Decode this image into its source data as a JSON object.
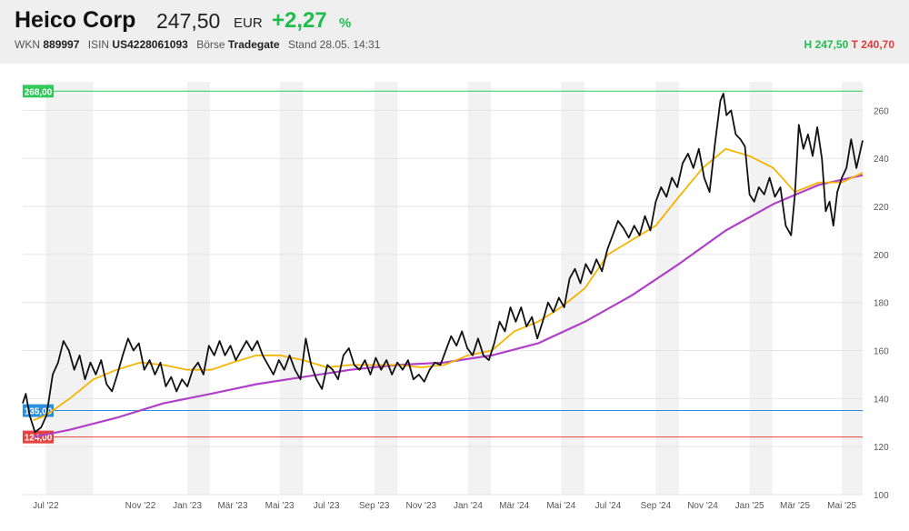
{
  "header": {
    "name": "Heico Corp",
    "price": "247,50",
    "currency": "EUR",
    "change": "+2,27",
    "change_unit": "%",
    "wkn_label": "WKN",
    "wkn": "889997",
    "isin_label": "ISIN",
    "isin": "US4228061093",
    "exchange_label": "Börse",
    "exchange": "Tradegate",
    "stand_label": "Stand",
    "stand": "28.05. 14:31",
    "high_label": "H",
    "high": "247,50",
    "low_label": "T",
    "low": "240,70"
  },
  "colors": {
    "price_line": "#111111",
    "ma_short": "#f5b400",
    "ma_long": "#b040c8",
    "level_high": "#31c95b",
    "level_mid": "#2b8fe0",
    "level_low": "#e8423f",
    "shade": "#f2f2f2",
    "positive": "#1ebd4e",
    "negative": "#e33b3b"
  },
  "chart_data": {
    "type": "line",
    "x_start": "2022-06-01",
    "x_end": "2025-05-28",
    "y_range": [
      100,
      270
    ],
    "y_ticks": [
      100,
      120,
      140,
      160,
      180,
      200,
      220,
      240,
      260
    ],
    "x_ticks": [
      {
        "label": "Jul '22",
        "date": "2022-07-01"
      },
      {
        "label": "Nov '22",
        "date": "2022-11-01"
      },
      {
        "label": "Jan '23",
        "date": "2023-01-01"
      },
      {
        "label": "Mär '23",
        "date": "2023-03-01"
      },
      {
        "label": "Mai '23",
        "date": "2023-05-01"
      },
      {
        "label": "Jul '23",
        "date": "2023-07-01"
      },
      {
        "label": "Sep '23",
        "date": "2023-09-01"
      },
      {
        "label": "Nov '23",
        "date": "2023-11-01"
      },
      {
        "label": "Jan '24",
        "date": "2024-01-01"
      },
      {
        "label": "Mär '24",
        "date": "2024-03-01"
      },
      {
        "label": "Mai '24",
        "date": "2024-05-01"
      },
      {
        "label": "Jul '24",
        "date": "2024-07-01"
      },
      {
        "label": "Sep '24",
        "date": "2024-09-01"
      },
      {
        "label": "Nov '24",
        "date": "2024-11-01"
      },
      {
        "label": "Jan '25",
        "date": "2025-01-01"
      },
      {
        "label": "Mär '25",
        "date": "2025-03-01"
      },
      {
        "label": "Mai '25",
        "date": "2025-05-01"
      }
    ],
    "levels": [
      {
        "label": "268,00",
        "value": 268,
        "color": "#31c95b"
      },
      {
        "label": "135,00",
        "value": 135,
        "color": "#2b8fe0"
      },
      {
        "label": "124,00",
        "value": 124,
        "color": "#e8423f"
      }
    ],
    "series": [
      {
        "color": "#111111",
        "points": [
          [
            "2022-06-01",
            138
          ],
          [
            "2022-06-05",
            142
          ],
          [
            "2022-06-10",
            133
          ],
          [
            "2022-06-17",
            126
          ],
          [
            "2022-06-25",
            128
          ],
          [
            "2022-07-02",
            133
          ],
          [
            "2022-07-10",
            150
          ],
          [
            "2022-07-17",
            155
          ],
          [
            "2022-07-24",
            164
          ],
          [
            "2022-07-31",
            160
          ],
          [
            "2022-08-07",
            152
          ],
          [
            "2022-08-14",
            158
          ],
          [
            "2022-08-21",
            148
          ],
          [
            "2022-08-28",
            155
          ],
          [
            "2022-09-04",
            150
          ],
          [
            "2022-09-11",
            156
          ],
          [
            "2022-09-18",
            146
          ],
          [
            "2022-09-25",
            143
          ],
          [
            "2022-10-02",
            150
          ],
          [
            "2022-10-09",
            158
          ],
          [
            "2022-10-16",
            165
          ],
          [
            "2022-10-23",
            160
          ],
          [
            "2022-10-30",
            163
          ],
          [
            "2022-11-06",
            152
          ],
          [
            "2022-11-13",
            156
          ],
          [
            "2022-11-20",
            150
          ],
          [
            "2022-11-27",
            155
          ],
          [
            "2022-12-04",
            145
          ],
          [
            "2022-12-11",
            149
          ],
          [
            "2022-12-18",
            143
          ],
          [
            "2022-12-25",
            148
          ],
          [
            "2023-01-01",
            145
          ],
          [
            "2023-01-08",
            152
          ],
          [
            "2023-01-15",
            155
          ],
          [
            "2023-01-22",
            150
          ],
          [
            "2023-01-29",
            162
          ],
          [
            "2023-02-05",
            158
          ],
          [
            "2023-02-12",
            164
          ],
          [
            "2023-02-19",
            158
          ],
          [
            "2023-02-26",
            162
          ],
          [
            "2023-03-05",
            156
          ],
          [
            "2023-03-12",
            160
          ],
          [
            "2023-03-19",
            164
          ],
          [
            "2023-03-26",
            160
          ],
          [
            "2023-04-02",
            164
          ],
          [
            "2023-04-09",
            158
          ],
          [
            "2023-04-16",
            154
          ],
          [
            "2023-04-23",
            150
          ],
          [
            "2023-04-30",
            156
          ],
          [
            "2023-05-07",
            152
          ],
          [
            "2023-05-14",
            158
          ],
          [
            "2023-05-21",
            152
          ],
          [
            "2023-05-28",
            148
          ],
          [
            "2023-06-04",
            165
          ],
          [
            "2023-06-11",
            154
          ],
          [
            "2023-06-18",
            148
          ],
          [
            "2023-06-25",
            144
          ],
          [
            "2023-07-02",
            154
          ],
          [
            "2023-07-09",
            152
          ],
          [
            "2023-07-16",
            148
          ],
          [
            "2023-07-23",
            158
          ],
          [
            "2023-07-30",
            161
          ],
          [
            "2023-08-06",
            154
          ],
          [
            "2023-08-13",
            152
          ],
          [
            "2023-08-20",
            156
          ],
          [
            "2023-08-27",
            150
          ],
          [
            "2023-09-03",
            157
          ],
          [
            "2023-09-10",
            152
          ],
          [
            "2023-09-17",
            156
          ],
          [
            "2023-09-24",
            150
          ],
          [
            "2023-10-01",
            155
          ],
          [
            "2023-10-08",
            152
          ],
          [
            "2023-10-15",
            156
          ],
          [
            "2023-10-22",
            148
          ],
          [
            "2023-10-29",
            150
          ],
          [
            "2023-11-05",
            147
          ],
          [
            "2023-11-12",
            152
          ],
          [
            "2023-11-19",
            155
          ],
          [
            "2023-11-26",
            154
          ],
          [
            "2023-12-03",
            160
          ],
          [
            "2023-12-10",
            166
          ],
          [
            "2023-12-17",
            162
          ],
          [
            "2023-12-24",
            168
          ],
          [
            "2023-12-31",
            161
          ],
          [
            "2024-01-07",
            158
          ],
          [
            "2024-01-14",
            165
          ],
          [
            "2024-01-21",
            158
          ],
          [
            "2024-01-28",
            156
          ],
          [
            "2024-02-04",
            163
          ],
          [
            "2024-02-11",
            172
          ],
          [
            "2024-02-18",
            168
          ],
          [
            "2024-02-25",
            178
          ],
          [
            "2024-03-03",
            172
          ],
          [
            "2024-03-10",
            178
          ],
          [
            "2024-03-17",
            170
          ],
          [
            "2024-03-24",
            174
          ],
          [
            "2024-03-31",
            165
          ],
          [
            "2024-04-07",
            172
          ],
          [
            "2024-04-14",
            180
          ],
          [
            "2024-04-21",
            176
          ],
          [
            "2024-04-28",
            182
          ],
          [
            "2024-05-05",
            178
          ],
          [
            "2024-05-12",
            190
          ],
          [
            "2024-05-19",
            194
          ],
          [
            "2024-05-26",
            188
          ],
          [
            "2024-06-02",
            196
          ],
          [
            "2024-06-09",
            192
          ],
          [
            "2024-06-16",
            198
          ],
          [
            "2024-06-23",
            193
          ],
          [
            "2024-06-30",
            202
          ],
          [
            "2024-07-07",
            208
          ],
          [
            "2024-07-14",
            214
          ],
          [
            "2024-07-21",
            211
          ],
          [
            "2024-07-28",
            207
          ],
          [
            "2024-08-04",
            212
          ],
          [
            "2024-08-11",
            208
          ],
          [
            "2024-08-18",
            216
          ],
          [
            "2024-08-25",
            210
          ],
          [
            "2024-09-01",
            222
          ],
          [
            "2024-09-08",
            228
          ],
          [
            "2024-09-15",
            224
          ],
          [
            "2024-09-22",
            232
          ],
          [
            "2024-09-29",
            228
          ],
          [
            "2024-10-06",
            238
          ],
          [
            "2024-10-13",
            242
          ],
          [
            "2024-10-20",
            236
          ],
          [
            "2024-10-27",
            244
          ],
          [
            "2024-11-03",
            232
          ],
          [
            "2024-11-10",
            226
          ],
          [
            "2024-11-17",
            246
          ],
          [
            "2024-11-24",
            264
          ],
          [
            "2024-11-28",
            267
          ],
          [
            "2024-12-02",
            258
          ],
          [
            "2024-12-08",
            260
          ],
          [
            "2024-12-14",
            250
          ],
          [
            "2024-12-20",
            248
          ],
          [
            "2024-12-26",
            245
          ],
          [
            "2025-01-01",
            225
          ],
          [
            "2025-01-07",
            222
          ],
          [
            "2025-01-13",
            228
          ],
          [
            "2025-01-20",
            225
          ],
          [
            "2025-01-27",
            232
          ],
          [
            "2025-02-03",
            224
          ],
          [
            "2025-02-10",
            228
          ],
          [
            "2025-02-17",
            212
          ],
          [
            "2025-02-24",
            208
          ],
          [
            "2025-03-01",
            225
          ],
          [
            "2025-03-06",
            254
          ],
          [
            "2025-03-12",
            244
          ],
          [
            "2025-03-18",
            250
          ],
          [
            "2025-03-24",
            241
          ],
          [
            "2025-03-30",
            253
          ],
          [
            "2025-04-05",
            240
          ],
          [
            "2025-04-10",
            218
          ],
          [
            "2025-04-15",
            222
          ],
          [
            "2025-04-20",
            212
          ],
          [
            "2025-04-25",
            226
          ],
          [
            "2025-05-01",
            232
          ],
          [
            "2025-05-07",
            236
          ],
          [
            "2025-05-13",
            248
          ],
          [
            "2025-05-20",
            236
          ],
          [
            "2025-05-28",
            247.5
          ]
        ]
      },
      {
        "color": "#f5b400",
        "points": [
          [
            "2022-06-15",
            131
          ],
          [
            "2022-07-01",
            133
          ],
          [
            "2022-08-01",
            140
          ],
          [
            "2022-09-01",
            148
          ],
          [
            "2022-10-01",
            152
          ],
          [
            "2022-11-01",
            155
          ],
          [
            "2022-12-01",
            154
          ],
          [
            "2023-01-01",
            152
          ],
          [
            "2023-02-01",
            152
          ],
          [
            "2023-03-01",
            155
          ],
          [
            "2023-04-01",
            158
          ],
          [
            "2023-05-01",
            158
          ],
          [
            "2023-06-01",
            156
          ],
          [
            "2023-07-01",
            153
          ],
          [
            "2023-08-01",
            154
          ],
          [
            "2023-09-01",
            154
          ],
          [
            "2023-10-01",
            154
          ],
          [
            "2023-11-01",
            153
          ],
          [
            "2023-12-01",
            154
          ],
          [
            "2024-01-01",
            158
          ],
          [
            "2024-02-01",
            160
          ],
          [
            "2024-03-01",
            168
          ],
          [
            "2024-04-01",
            172
          ],
          [
            "2024-05-01",
            178
          ],
          [
            "2024-06-01",
            186
          ],
          [
            "2024-07-01",
            200
          ],
          [
            "2024-08-01",
            206
          ],
          [
            "2024-09-01",
            212
          ],
          [
            "2024-10-01",
            224
          ],
          [
            "2024-11-01",
            236
          ],
          [
            "2024-12-01",
            244
          ],
          [
            "2025-01-01",
            241
          ],
          [
            "2025-02-01",
            236
          ],
          [
            "2025-03-01",
            226
          ],
          [
            "2025-04-01",
            230
          ],
          [
            "2025-05-01",
            230
          ],
          [
            "2025-05-28",
            234
          ]
        ]
      },
      {
        "color": "#b040c8",
        "points": [
          [
            "2022-06-15",
            124
          ],
          [
            "2022-08-01",
            127
          ],
          [
            "2022-10-01",
            132
          ],
          [
            "2022-12-01",
            138
          ],
          [
            "2023-02-01",
            142
          ],
          [
            "2023-04-01",
            146
          ],
          [
            "2023-06-01",
            149
          ],
          [
            "2023-08-01",
            152
          ],
          [
            "2023-10-01",
            154
          ],
          [
            "2023-12-01",
            155
          ],
          [
            "2024-02-01",
            158
          ],
          [
            "2024-04-01",
            163
          ],
          [
            "2024-06-01",
            172
          ],
          [
            "2024-08-01",
            183
          ],
          [
            "2024-10-01",
            196
          ],
          [
            "2024-12-01",
            210
          ],
          [
            "2025-02-01",
            221
          ],
          [
            "2025-04-01",
            229
          ],
          [
            "2025-05-28",
            233
          ]
        ]
      }
    ]
  }
}
